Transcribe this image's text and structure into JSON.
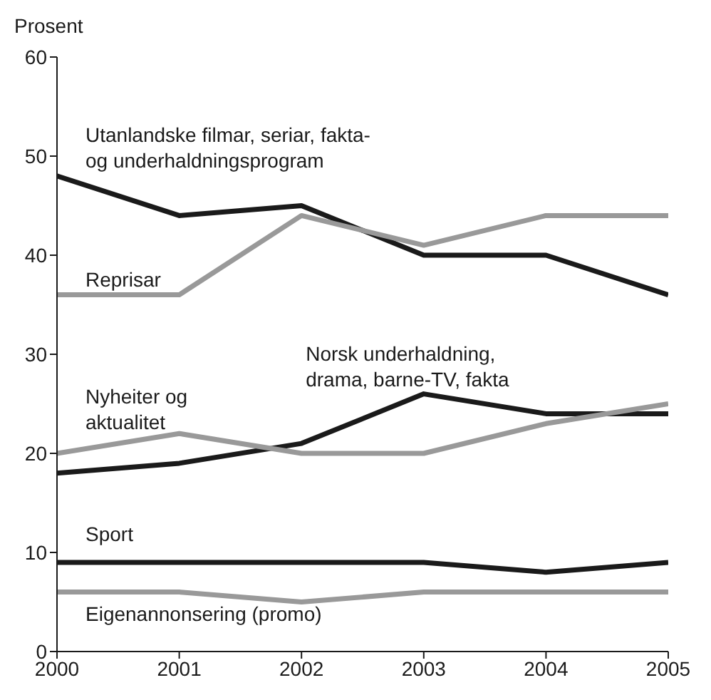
{
  "chart_data": {
    "type": "line",
    "ylabel": "Prosent",
    "x": [
      2000,
      2001,
      2002,
      2003,
      2004,
      2005
    ],
    "xlim": [
      2000,
      2005
    ],
    "xticks": [
      2000,
      2001,
      2002,
      2003,
      2004,
      2005
    ],
    "ylim": [
      0,
      60
    ],
    "yticks": [
      0,
      10,
      20,
      30,
      40,
      50,
      60
    ],
    "grid": false,
    "legend": false,
    "marker": "none",
    "line_style": "solid",
    "series": [
      {
        "name": "Utanlandske filmar, seriar, fakta-\nog underhaldningsprogram",
        "color": "#1a1a1a",
        "values": [
          48,
          44,
          45,
          40,
          40,
          36
        ]
      },
      {
        "name": "Reprisar",
        "color": "#999999",
        "values": [
          36,
          36,
          44,
          41,
          44,
          44
        ]
      },
      {
        "name": "Norsk underhaldning,\ndrama, barne-TV, fakta",
        "color": "#1a1a1a",
        "values": [
          18,
          19,
          21,
          26,
          24,
          24
        ]
      },
      {
        "name": "Nyheiter og\naktualitet",
        "color": "#999999",
        "values": [
          20,
          22,
          20,
          20,
          23,
          25
        ]
      },
      {
        "name": "Sport",
        "color": "#1a1a1a",
        "values": [
          9,
          9,
          9,
          9,
          8,
          9
        ]
      },
      {
        "name": "Eigenannonsering (promo)",
        "color": "#999999",
        "values": [
          6,
          6,
          5,
          6,
          6,
          6
        ]
      }
    ]
  }
}
